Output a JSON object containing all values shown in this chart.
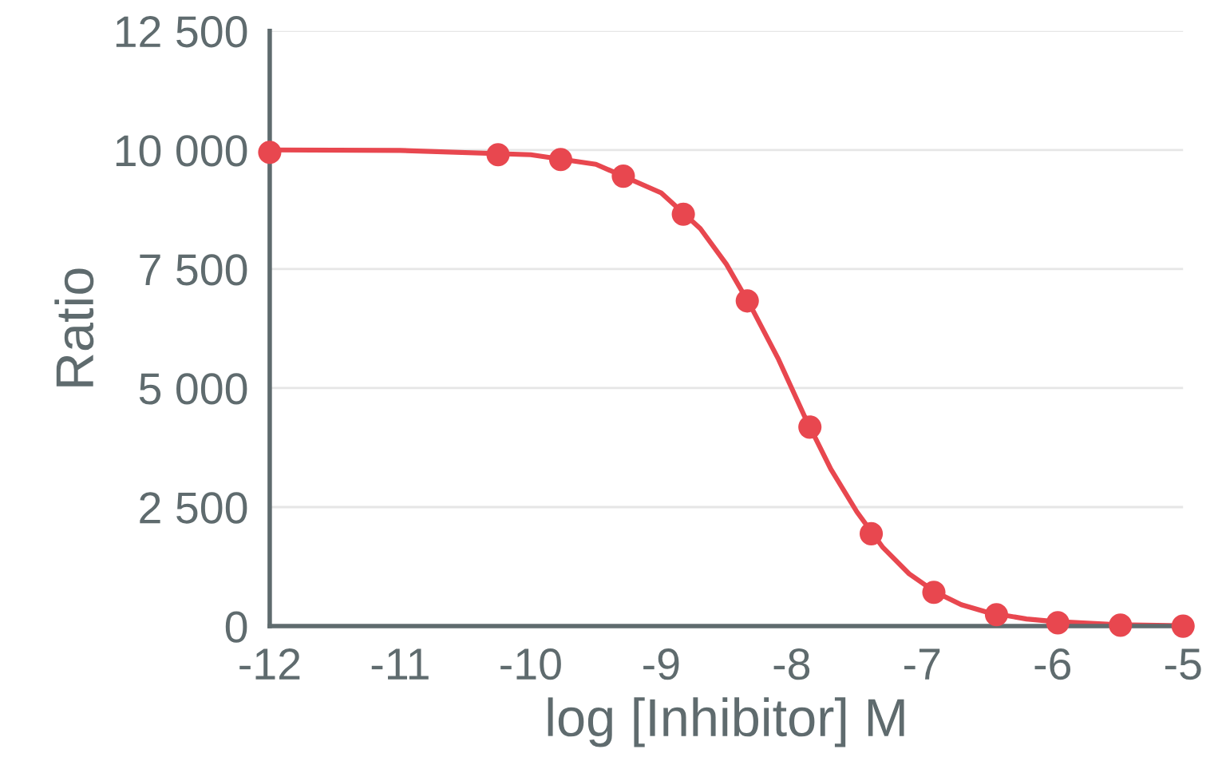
{
  "chart_data": {
    "type": "scatter",
    "xlabel": "log [Inhibitor] M",
    "ylabel": "Ratio",
    "series": [
      {
        "type": "line",
        "color": "#e8474f",
        "marker": "none",
        "line_style": "solid",
        "x": [
          -12,
          -11,
          -10,
          -9.5,
          -9,
          -8.7,
          -8.5,
          -8.3,
          -8.1,
          -8,
          -7.9,
          -7.7,
          -7.5,
          -7.3,
          -7.1,
          -6.9,
          -6.7,
          -6.5,
          -6.2,
          -6,
          -5.5,
          -5
        ],
        "values": [
          10000,
          9990,
          9900,
          9700,
          9100,
          8350,
          7600,
          6650,
          5600,
          5000,
          4400,
          3300,
          2400,
          1650,
          1100,
          720,
          450,
          290,
          150,
          100,
          30,
          10
        ]
      },
      {
        "color": "#e8474f",
        "marker": "circle",
        "x": [
          -12,
          -10.25,
          -9.77,
          -9.29,
          -8.83,
          -8.34,
          -7.86,
          -7.39,
          -6.91,
          -6.43,
          -5.96,
          -5.48,
          -5
        ],
        "values": [
          9950,
          9900,
          9800,
          9450,
          8650,
          6830,
          4180,
          1940,
          710,
          240,
          70,
          20,
          0
        ]
      }
    ],
    "xlim": [
      -12,
      -5
    ],
    "xticks": [
      {
        "value": -12,
        "label": "-12"
      },
      {
        "value": -11,
        "label": "-11"
      },
      {
        "value": -10,
        "label": "-10"
      },
      {
        "value": -9,
        "label": "-9"
      },
      {
        "value": -8,
        "label": "-8"
      },
      {
        "value": -7,
        "label": "-7"
      },
      {
        "value": -6,
        "label": "-6"
      },
      {
        "value": -5,
        "label": "-5"
      }
    ],
    "ylim": [
      0,
      12500
    ],
    "yticks": [
      0,
      {
        "value": 2500,
        "label": "2 500"
      },
      {
        "value": 5000,
        "label": "5 000"
      },
      {
        "value": 7500,
        "label": "7 500"
      },
      {
        "value": 10000,
        "label": "10 000"
      },
      {
        "value": 12500,
        "label": "12 500"
      }
    ],
    "grid": "y",
    "legend": false
  }
}
